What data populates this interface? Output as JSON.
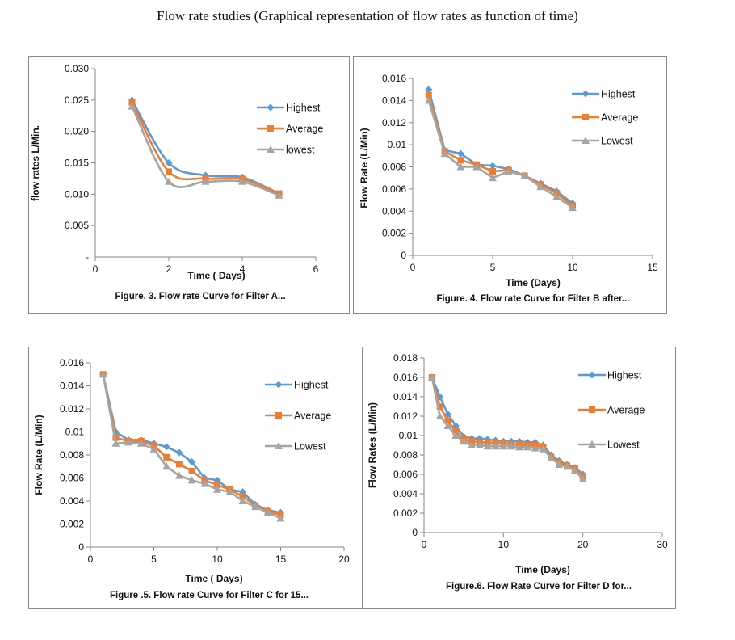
{
  "page": {
    "title": "Flow rate studies (Graphical representation of flow rates as function of time)"
  },
  "colors": {
    "highest": "#5b9bd5",
    "average": "#ed7d31",
    "lowest": "#a5a5a5"
  },
  "chart_data": [
    {
      "id": "A",
      "type": "line",
      "caption": "Figure. 3.  Flow rate Curve for Filter  A...",
      "xlabel": "Time ( Days)",
      "ylabel": "flow rates L/Min.",
      "xlim": [
        0,
        6
      ],
      "ylim": [
        0,
        0.03
      ],
      "xticks": [
        0,
        2,
        4,
        6
      ],
      "xtick_labels": [
        "0",
        "2",
        "4",
        "6"
      ],
      "yticks": [
        0,
        0.005,
        0.01,
        0.015,
        0.02,
        0.025,
        0.03
      ],
      "ytick_labels": [
        "-",
        "0.005",
        "0.010",
        "0.015",
        "0.020",
        "0.025",
        "0.030"
      ],
      "smooth": true,
      "legend_position": "right",
      "series": [
        {
          "name": "Highest",
          "color": "#5b9bd5",
          "marker": "diamond",
          "x": [
            1,
            2,
            3,
            4,
            5
          ],
          "y": [
            0.025,
            0.015,
            0.013,
            0.0127,
            0.0101
          ]
        },
        {
          "name": "Average",
          "color": "#ed7d31",
          "marker": "square",
          "x": [
            1,
            2,
            3,
            4,
            5
          ],
          "y": [
            0.0246,
            0.0136,
            0.0125,
            0.0124,
            0.0101
          ]
        },
        {
          "name": "lowest",
          "color": "#a5a5a5",
          "marker": "triangle",
          "x": [
            1,
            2,
            3,
            4,
            5
          ],
          "y": [
            0.024,
            0.012,
            0.012,
            0.012,
            0.0098
          ]
        }
      ]
    },
    {
      "id": "B",
      "type": "line",
      "caption": "Figure. 4. Flow rate Curve for Filter B after...",
      "xlabel": "Time (Days)",
      "ylabel": "Flow Rate (L/Min)",
      "xlim": [
        0,
        15
      ],
      "ylim": [
        0,
        0.016
      ],
      "xticks": [
        0,
        5,
        10,
        15
      ],
      "xtick_labels": [
        "0",
        "5",
        "10",
        "15"
      ],
      "yticks": [
        0,
        0.002,
        0.004,
        0.006,
        0.008,
        0.01,
        0.012,
        0.014,
        0.016
      ],
      "ytick_labels": [
        "0",
        "0.002",
        "0.004",
        "0.006",
        "0.008",
        "0.01",
        "0.012",
        "0.014",
        "0.016"
      ],
      "smooth": false,
      "legend_position": "right",
      "series": [
        {
          "name": "Highest",
          "color": "#5b9bd5",
          "marker": "diamond",
          "x": [
            1,
            2,
            3,
            4,
            5,
            6,
            7,
            8,
            9,
            10
          ],
          "y": [
            0.015,
            0.0095,
            0.0092,
            0.0082,
            0.0081,
            0.0078,
            0.0072,
            0.0065,
            0.0058,
            0.0047
          ]
        },
        {
          "name": "Average",
          "color": "#ed7d31",
          "marker": "square",
          "x": [
            1,
            2,
            3,
            4,
            5,
            6,
            7,
            8,
            9,
            10
          ],
          "y": [
            0.0145,
            0.0094,
            0.0086,
            0.0082,
            0.0076,
            0.0077,
            0.0072,
            0.0064,
            0.0056,
            0.0045
          ]
        },
        {
          "name": "Lowest",
          "color": "#a5a5a5",
          "marker": "triangle",
          "x": [
            1,
            2,
            3,
            4,
            5,
            6,
            7,
            8,
            9,
            10
          ],
          "y": [
            0.014,
            0.0092,
            0.008,
            0.008,
            0.007,
            0.0076,
            0.0072,
            0.0062,
            0.0053,
            0.0043
          ]
        }
      ]
    },
    {
      "id": "C",
      "type": "line",
      "caption": "Figure .5. Flow rate Curve for Filter C for 15...",
      "xlabel": "Time ( Days)",
      "ylabel": "Flow Rate (L/Min)",
      "xlim": [
        0,
        20
      ],
      "ylim": [
        0,
        0.016
      ],
      "xticks": [
        0,
        5,
        10,
        15,
        20
      ],
      "xtick_labels": [
        "0",
        "5",
        "10",
        "15",
        "20"
      ],
      "yticks": [
        0,
        0.002,
        0.004,
        0.006,
        0.008,
        0.01,
        0.012,
        0.014,
        0.016
      ],
      "ytick_labels": [
        "0",
        "0.002",
        "0.004",
        "0.006",
        "0.008",
        "0.01",
        "0.012",
        "0.014",
        "0.016"
      ],
      "smooth": false,
      "legend_position": "right",
      "series": [
        {
          "name": "Highest",
          "color": "#5b9bd5",
          "marker": "diamond",
          "x": [
            1,
            2,
            3,
            4,
            5,
            6,
            7,
            8,
            9,
            10,
            11,
            12,
            13,
            14,
            15
          ],
          "y": [
            0.015,
            0.01,
            0.0093,
            0.0093,
            0.009,
            0.0087,
            0.0082,
            0.0074,
            0.006,
            0.0058,
            0.005,
            0.0048,
            0.0037,
            0.0032,
            0.003
          ]
        },
        {
          "name": "Average",
          "color": "#ed7d31",
          "marker": "square",
          "x": [
            1,
            2,
            3,
            4,
            5,
            6,
            7,
            8,
            9,
            10,
            11,
            12,
            13,
            14,
            15
          ],
          "y": [
            0.015,
            0.0095,
            0.0092,
            0.0092,
            0.0088,
            0.0078,
            0.0072,
            0.0066,
            0.0058,
            0.0054,
            0.005,
            0.0044,
            0.0036,
            0.0031,
            0.0028
          ]
        },
        {
          "name": "Lowest",
          "color": "#a5a5a5",
          "marker": "triangle",
          "x": [
            1,
            2,
            3,
            4,
            5,
            6,
            7,
            8,
            9,
            10,
            11,
            12,
            13,
            14,
            15
          ],
          "y": [
            0.015,
            0.009,
            0.0091,
            0.009,
            0.0085,
            0.007,
            0.0062,
            0.0058,
            0.0055,
            0.005,
            0.0048,
            0.004,
            0.0035,
            0.003,
            0.0025
          ]
        }
      ]
    },
    {
      "id": "D",
      "type": "line",
      "caption": "Figure.6. Flow Rate Curve for Filter D for...",
      "xlabel": "Time (Days)",
      "ylabel": "Flow Rates (L/Min)",
      "xlim": [
        0,
        30
      ],
      "ylim": [
        0,
        0.018
      ],
      "xticks": [
        0,
        10,
        20,
        30
      ],
      "xtick_labels": [
        "0",
        "10",
        "20",
        "30"
      ],
      "yticks": [
        0,
        0.002,
        0.004,
        0.006,
        0.008,
        0.01,
        0.012,
        0.014,
        0.016,
        0.018
      ],
      "ytick_labels": [
        "0",
        "0.002",
        "0.004",
        "0.006",
        "0.008",
        "0.01",
        "0.012",
        "0.014",
        "0.016",
        "0.018"
      ],
      "smooth": false,
      "legend_position": "right",
      "series": [
        {
          "name": "Highest",
          "color": "#5b9bd5",
          "marker": "diamond",
          "x": [
            1,
            2,
            3,
            4,
            5,
            6,
            7,
            8,
            9,
            10,
            11,
            12,
            13,
            14,
            15,
            16,
            17,
            18,
            19,
            20
          ],
          "y": [
            0.016,
            0.014,
            0.0122,
            0.011,
            0.0099,
            0.0097,
            0.0097,
            0.0096,
            0.0095,
            0.0094,
            0.0094,
            0.0094,
            0.0093,
            0.0093,
            0.009,
            0.008,
            0.0074,
            0.007,
            0.0067,
            0.006
          ]
        },
        {
          "name": "Average",
          "color": "#ed7d31",
          "marker": "square",
          "x": [
            1,
            2,
            3,
            4,
            5,
            6,
            7,
            8,
            9,
            10,
            11,
            12,
            13,
            14,
            15,
            16,
            17,
            18,
            19,
            20
          ],
          "y": [
            0.016,
            0.013,
            0.0115,
            0.0104,
            0.0096,
            0.0094,
            0.0093,
            0.0093,
            0.0092,
            0.0092,
            0.0091,
            0.0091,
            0.009,
            0.009,
            0.0088,
            0.0078,
            0.0072,
            0.0069,
            0.0066,
            0.0058
          ]
        },
        {
          "name": "Lowest",
          "color": "#a5a5a5",
          "marker": "triangle",
          "x": [
            1,
            2,
            3,
            4,
            5,
            6,
            7,
            8,
            9,
            10,
            11,
            12,
            13,
            14,
            15,
            16,
            17,
            18,
            19,
            20
          ],
          "y": [
            0.016,
            0.012,
            0.011,
            0.01,
            0.0094,
            0.009,
            0.009,
            0.0089,
            0.0089,
            0.0089,
            0.0089,
            0.0088,
            0.0088,
            0.0087,
            0.0086,
            0.0077,
            0.007,
            0.0068,
            0.0064,
            0.0055
          ]
        }
      ]
    }
  ]
}
